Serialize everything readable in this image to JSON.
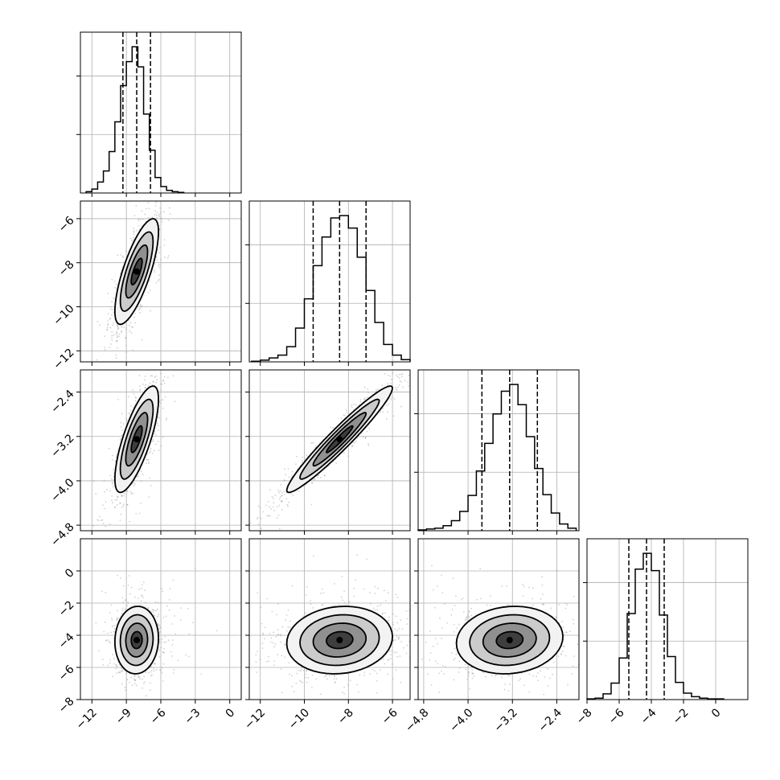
{
  "chart_data": {
    "type": "corner",
    "parameters": [
      {
        "range": [
          -13,
          1
        ],
        "ticks": [
          -12,
          -9,
          -6,
          -3,
          0
        ],
        "tick_labels": [
          "−12",
          "−9",
          "−6",
          "−3",
          "0"
        ],
        "hist": {
          "edges": [
            -12.5,
            -12.0,
            -11.5,
            -11.0,
            -10.5,
            -10.0,
            -9.5,
            -9.0,
            -8.5,
            -8.0,
            -7.5,
            -7.0,
            -6.5,
            -6.0,
            -5.5,
            -5.0,
            -4.5,
            -4.0
          ],
          "counts": [
            2,
            6,
            17,
            34,
            64,
            110,
            166,
            203,
            226,
            195,
            122,
            66,
            24,
            10,
            4,
            2,
            1
          ]
        },
        "quantiles": [
          -9.3,
          -8.1,
          -6.9
        ]
      },
      {
        "range": [
          -12.5,
          -5.2
        ],
        "ticks": [
          -12,
          -10,
          -8,
          -6
        ],
        "tick_labels": [
          "−12",
          "−10",
          "−8",
          "−6"
        ],
        "hist": {
          "edges": [
            -12.4,
            -12.0,
            -11.6,
            -11.2,
            -10.8,
            -10.4,
            -10.0,
            -9.6,
            -9.2,
            -8.8,
            -8.4,
            -8.0,
            -7.6,
            -7.2,
            -6.8,
            -6.4,
            -6.0,
            -5.6,
            -5.2
          ],
          "counts": [
            1,
            3,
            7,
            12,
            27,
            60,
            112,
            171,
            222,
            256,
            260,
            238,
            186,
            127,
            70,
            31,
            12,
            4
          ]
        },
        "quantiles": [
          -9.6,
          -8.4,
          -7.2
        ]
      },
      {
        "range": [
          -4.9,
          -2.0
        ],
        "ticks": [
          -4.8,
          -4.0,
          -3.2,
          -2.4
        ],
        "tick_labels": [
          "−4.8",
          "−4.0",
          "−3.2",
          "−2.4"
        ],
        "hist": {
          "edges": [
            -4.9,
            -4.75,
            -4.6,
            -4.45,
            -4.3,
            -4.15,
            -4.0,
            -3.85,
            -3.7,
            -3.55,
            -3.4,
            -3.25,
            -3.1,
            -2.95,
            -2.8,
            -2.65,
            -2.5,
            -2.35,
            -2.2,
            -2.05
          ],
          "counts": [
            1,
            2,
            3,
            6,
            12,
            23,
            42,
            71,
            104,
            139,
            166,
            174,
            150,
            112,
            74,
            43,
            21,
            8,
            3
          ]
        },
        "quantiles": [
          -3.75,
          -3.25,
          -2.75
        ]
      },
      {
        "range": [
          -8,
          2
        ],
        "ticks": [
          -8,
          -6,
          -4,
          -2,
          0
        ],
        "tick_labels": [
          "−8",
          "−6",
          "−4",
          "−2",
          "0"
        ],
        "hist": {
          "edges": [
            -8.0,
            -7.5,
            -7.0,
            -6.5,
            -6.0,
            -5.5,
            -5.0,
            -4.5,
            -4.0,
            -3.5,
            -3.0,
            -2.5,
            -2.0,
            -1.5,
            -1.0,
            -0.5,
            0.0,
            0.5
          ],
          "counts": [
            1,
            2,
            8,
            23,
            58,
            120,
            182,
            204,
            180,
            118,
            60,
            24,
            9,
            4,
            2,
            1,
            1
          ]
        },
        "quantiles": [
          -5.4,
          -4.3,
          -3.2
        ]
      }
    ],
    "pairs": [
      {
        "row": 1,
        "col": 0,
        "mean": [
          -8.1,
          -8.4
        ],
        "sd": [
          0.95,
          1.2
        ],
        "corr": 0.75
      },
      {
        "row": 2,
        "col": 0,
        "mean": [
          -8.1,
          -3.25
        ],
        "sd": [
          0.95,
          0.48
        ],
        "corr": 0.75
      },
      {
        "row": 2,
        "col": 1,
        "mean": [
          -8.4,
          -3.25
        ],
        "sd": [
          1.2,
          0.48
        ],
        "corr": 0.96
      },
      {
        "row": 3,
        "col": 0,
        "mean": [
          -8.1,
          -4.3
        ],
        "sd": [
          0.95,
          1.05
        ],
        "corr": 0.05
      },
      {
        "row": 3,
        "col": 1,
        "mean": [
          -8.4,
          -4.3
        ],
        "sd": [
          1.2,
          1.05
        ],
        "corr": 0.1
      },
      {
        "row": 3,
        "col": 2,
        "mean": [
          -3.25,
          -4.3
        ],
        "sd": [
          0.48,
          1.05
        ],
        "corr": 0.1
      }
    ],
    "grid": true,
    "contour_levels_sigma": [
      0.5,
      1.0,
      1.5,
      2.0
    ],
    "colors": {
      "line": "#000000",
      "grid": "#b0b0b0",
      "points": "#9a9a9a"
    }
  }
}
